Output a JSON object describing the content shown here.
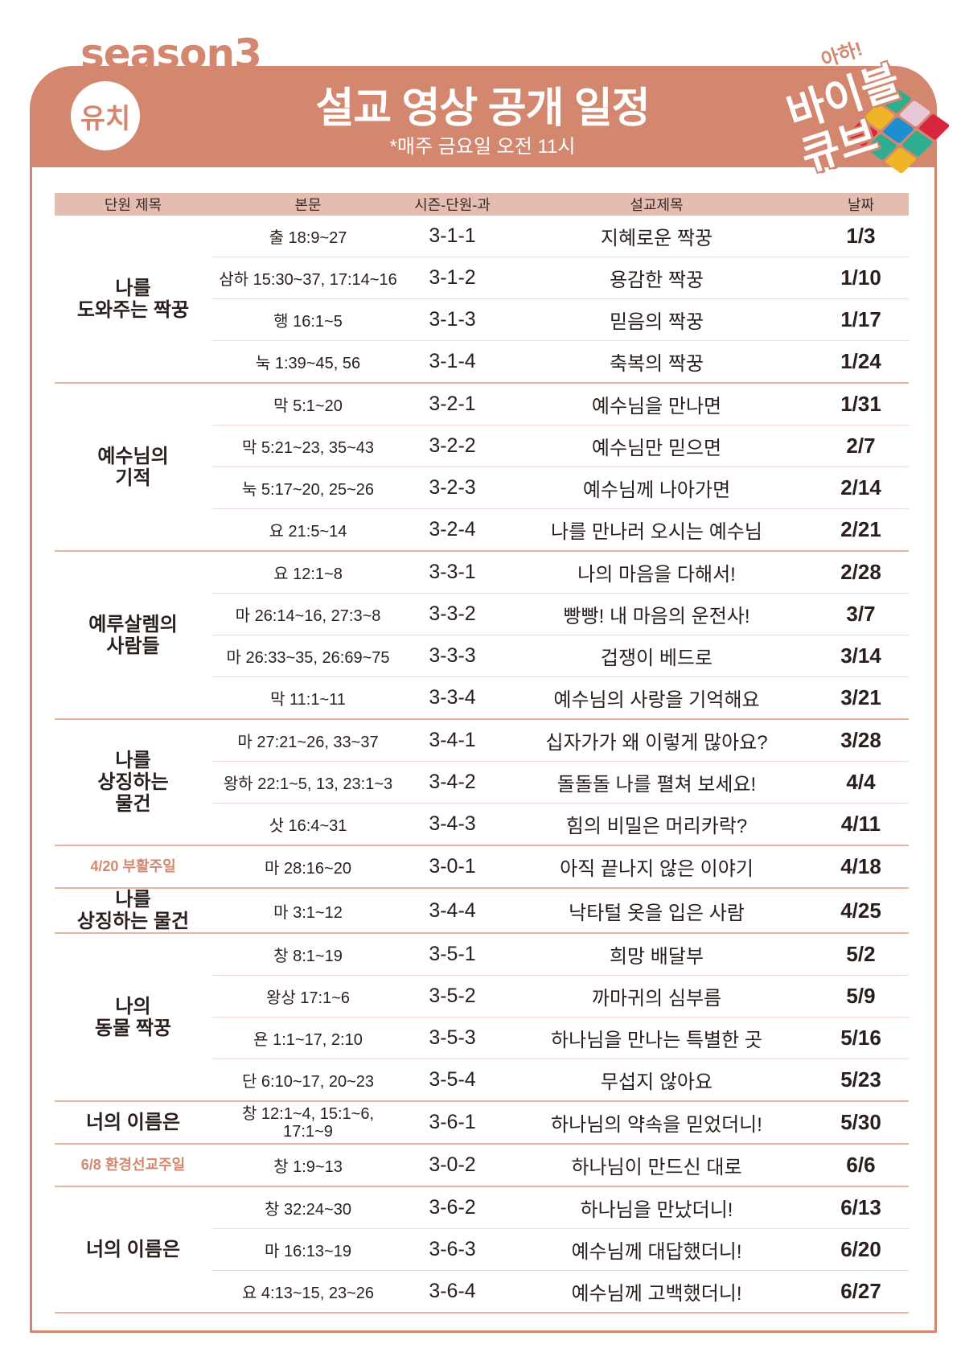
{
  "header": {
    "season": "season3",
    "badge": "유치",
    "title": "설교 영상 공개 일정",
    "subtitle": "*매주 금요일 오전 11시",
    "logo_text_top": "아하!",
    "logo_text_main": "바이블 큐브"
  },
  "colors": {
    "accent": "#d4876f",
    "header_row": "#e4bdb0",
    "divider": "#e7b4a3"
  },
  "table": {
    "columns": [
      "단원 제목",
      "본문",
      "시즌-단원-과",
      "설교제목",
      "날짜"
    ],
    "groups": [
      {
        "unit": "나를\n도와주는 짝꿍",
        "special": false,
        "rows": [
          [
            "출 18:9~27",
            "3-1-1",
            "지혜로운 짝꿍",
            "1/3"
          ],
          [
            "삼하 15:30~37, 17:14~16",
            "3-1-2",
            "용감한 짝꿍",
            "1/10"
          ],
          [
            "행 16:1~5",
            "3-1-3",
            "믿음의 짝꿍",
            "1/17"
          ],
          [
            "눅 1:39~45, 56",
            "3-1-4",
            "축복의 짝꿍",
            "1/24"
          ]
        ]
      },
      {
        "unit": "예수님의\n기적",
        "special": false,
        "rows": [
          [
            "막 5:1~20",
            "3-2-1",
            "예수님을 만나면",
            "1/31"
          ],
          [
            "막 5:21~23, 35~43",
            "3-2-2",
            "예수님만 믿으면",
            "2/7"
          ],
          [
            "눅 5:17~20, 25~26",
            "3-2-3",
            "예수님께 나아가면",
            "2/14"
          ],
          [
            "요 21:5~14",
            "3-2-4",
            "나를 만나러 오시는 예수님",
            "2/21"
          ]
        ]
      },
      {
        "unit": "예루살렘의\n사람들",
        "special": false,
        "rows": [
          [
            "요 12:1~8",
            "3-3-1",
            "나의 마음을 다해서!",
            "2/28"
          ],
          [
            "마 26:14~16, 27:3~8",
            "3-3-2",
            "빵빵! 내 마음의 운전사!",
            "3/7"
          ],
          [
            "마 26:33~35, 26:69~75",
            "3-3-3",
            "겁쟁이 베드로",
            "3/14"
          ],
          [
            "막 11:1~11",
            "3-3-4",
            "예수님의 사랑을 기억해요",
            "3/21"
          ]
        ]
      },
      {
        "unit": "나를\n상징하는\n물건",
        "special": false,
        "rows": [
          [
            "마 27:21~26, 33~37",
            "3-4-1",
            "십자가가 왜 이렇게 많아요?",
            "3/28"
          ],
          [
            "왕하 22:1~5, 13, 23:1~3",
            "3-4-2",
            "돌돌돌 나를 펼쳐 보세요!",
            "4/4"
          ],
          [
            "삿 16:4~31",
            "3-4-3",
            "힘의 비밀은 머리카락?",
            "4/11"
          ]
        ]
      },
      {
        "unit": "4/20 부활주일",
        "special": true,
        "rows": [
          [
            "마 28:16~20",
            "3-0-1",
            "아직 끝나지 않은 이야기",
            "4/18"
          ]
        ]
      },
      {
        "unit": "나를\n상징하는 물건",
        "special": false,
        "rows": [
          [
            "마 3:1~12",
            "3-4-4",
            "낙타털 옷을 입은 사람",
            "4/25"
          ]
        ]
      },
      {
        "unit": "나의\n동물 짝꿍",
        "special": false,
        "rows": [
          [
            "창 8:1~19",
            "3-5-1",
            "희망 배달부",
            "5/2"
          ],
          [
            "왕상 17:1~6",
            "3-5-2",
            "까마귀의 심부름",
            "5/9"
          ],
          [
            "욘 1:1~17, 2:10",
            "3-5-3",
            "하나님을 만나는 특별한 곳",
            "5/16"
          ],
          [
            "단 6:10~17, 20~23",
            "3-5-4",
            "무섭지 않아요",
            "5/23"
          ]
        ]
      },
      {
        "unit": "너의 이름은",
        "special": false,
        "rows": [
          [
            "창 12:1~4, 15:1~6,\n17:1~9",
            "3-6-1",
            "하나님의 약속을 믿었더니!",
            "5/30"
          ]
        ]
      },
      {
        "unit": "6/8 환경선교주일",
        "special": true,
        "rows": [
          [
            "창 1:9~13",
            "3-0-2",
            "하나님이 만드신 대로",
            "6/6"
          ]
        ]
      },
      {
        "unit": "너의 이름은",
        "special": false,
        "rows": [
          [
            "창 32:24~30",
            "3-6-2",
            "하나님을 만났더니!",
            "6/13"
          ],
          [
            "마 16:13~19",
            "3-6-3",
            "예수님께 대답했더니!",
            "6/20"
          ],
          [
            "요 4:13~15, 23~26",
            "3-6-4",
            "예수님께 고백했더니!",
            "6/27"
          ]
        ]
      }
    ]
  }
}
